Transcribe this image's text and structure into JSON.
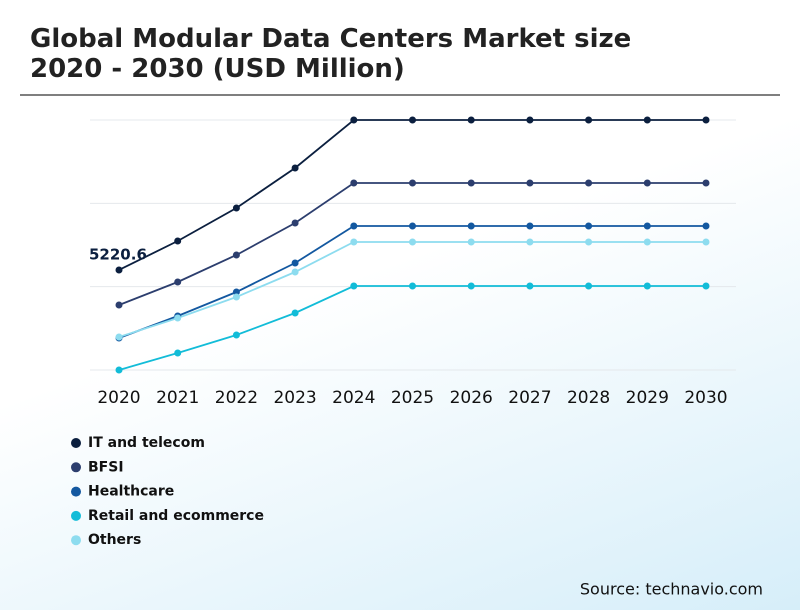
{
  "chart_data": {
    "type": "line",
    "title": "Global Modular Data Centers Market size 2020 - 2030 (USD Million)",
    "source": "Source: technavio.com",
    "categories": [
      "2020",
      "2021",
      "2022",
      "2023",
      "2024",
      "2025",
      "2026",
      "2027",
      "2028",
      "2029",
      "2030"
    ],
    "ylim": [
      2820,
      8820
    ],
    "grid": true,
    "legend": "bottom-left",
    "series": [
      {
        "name": "IT and telecom",
        "color": "#0b1f3f",
        "values": [
          5220.6,
          5916,
          6708,
          7668,
          8820,
          8820,
          8820,
          8820,
          8820,
          8820,
          8820
        ],
        "value_labels": [
          "5220.6",
          null,
          null,
          null,
          null,
          null,
          null,
          null,
          null,
          null,
          null
        ]
      },
      {
        "name": "BFSI",
        "color": "#2c3e6e",
        "values": [
          4380,
          4932,
          5580,
          6348,
          7308,
          7308,
          7308,
          7308,
          7308,
          7308,
          7308
        ]
      },
      {
        "name": "Healthcare",
        "color": "#1358a0",
        "values": [
          3588,
          4116,
          4692,
          5388,
          6276,
          6276,
          6276,
          6276,
          6276,
          6276,
          6276
        ]
      },
      {
        "name": "Retail and ecommerce",
        "color": "#12bcd8",
        "values": [
          2820,
          3228,
          3660,
          4188,
          4836,
          4836,
          4836,
          4836,
          4836,
          4836,
          4836
        ]
      },
      {
        "name": "Others",
        "color": "#8ddcef",
        "values": [
          3612,
          4068,
          4572,
          5172,
          5892,
          5892,
          5892,
          5892,
          5892,
          5892,
          5892
        ]
      }
    ]
  }
}
